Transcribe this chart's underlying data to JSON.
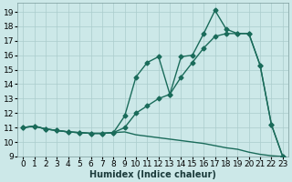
{
  "xlabel": "Humidex (Indice chaleur)",
  "bg_color": "#cce8e8",
  "grid_color": "#aacccc",
  "line_color": "#1a6b5a",
  "xlim": [
    -0.5,
    23.5
  ],
  "ylim": [
    9,
    19.6
  ],
  "yticks": [
    9,
    10,
    11,
    12,
    13,
    14,
    15,
    16,
    17,
    18,
    19
  ],
  "xticks": [
    0,
    1,
    2,
    3,
    4,
    5,
    6,
    7,
    8,
    9,
    10,
    11,
    12,
    13,
    14,
    15,
    16,
    17,
    18,
    19,
    20,
    21,
    22,
    23
  ],
  "series1_x": [
    0,
    1,
    2,
    3,
    4,
    5,
    6,
    7,
    8,
    9,
    10,
    11,
    12,
    13,
    14,
    15,
    16,
    17,
    18,
    19,
    20,
    21,
    22,
    23
  ],
  "series1_y": [
    11.0,
    11.1,
    10.9,
    10.8,
    10.7,
    10.65,
    10.6,
    10.6,
    10.65,
    10.7,
    10.5,
    10.4,
    10.3,
    10.2,
    10.1,
    10.0,
    9.9,
    9.75,
    9.6,
    9.5,
    9.3,
    9.15,
    9.05,
    9.0
  ],
  "series2_x": [
    0,
    1,
    2,
    3,
    4,
    5,
    6,
    7,
    8,
    9,
    10,
    11,
    12,
    13,
    14,
    15,
    16,
    17,
    18,
    19,
    20,
    21,
    22,
    23
  ],
  "series2_y": [
    11.0,
    11.1,
    10.9,
    10.8,
    10.7,
    10.65,
    10.6,
    10.6,
    10.65,
    11.0,
    12.0,
    12.5,
    13.0,
    13.3,
    14.5,
    15.5,
    16.5,
    17.3,
    17.5,
    17.5,
    17.5,
    15.3,
    11.2,
    9.0
  ],
  "series3_x": [
    0,
    1,
    2,
    3,
    4,
    5,
    6,
    7,
    8,
    9,
    10,
    11,
    12,
    13,
    14,
    15,
    16,
    17,
    18,
    19,
    20,
    21,
    22,
    23
  ],
  "series3_y": [
    11.0,
    11.1,
    10.9,
    10.8,
    10.7,
    10.65,
    10.6,
    10.6,
    10.65,
    11.8,
    14.5,
    15.5,
    15.9,
    13.3,
    15.9,
    16.0,
    17.5,
    19.1,
    17.8,
    17.5,
    17.5,
    15.3,
    11.2,
    9.0
  ],
  "marker": "D",
  "marker_size": 2.5,
  "line_width": 1.0,
  "font_size_label": 7,
  "font_size_tick": 6.5
}
